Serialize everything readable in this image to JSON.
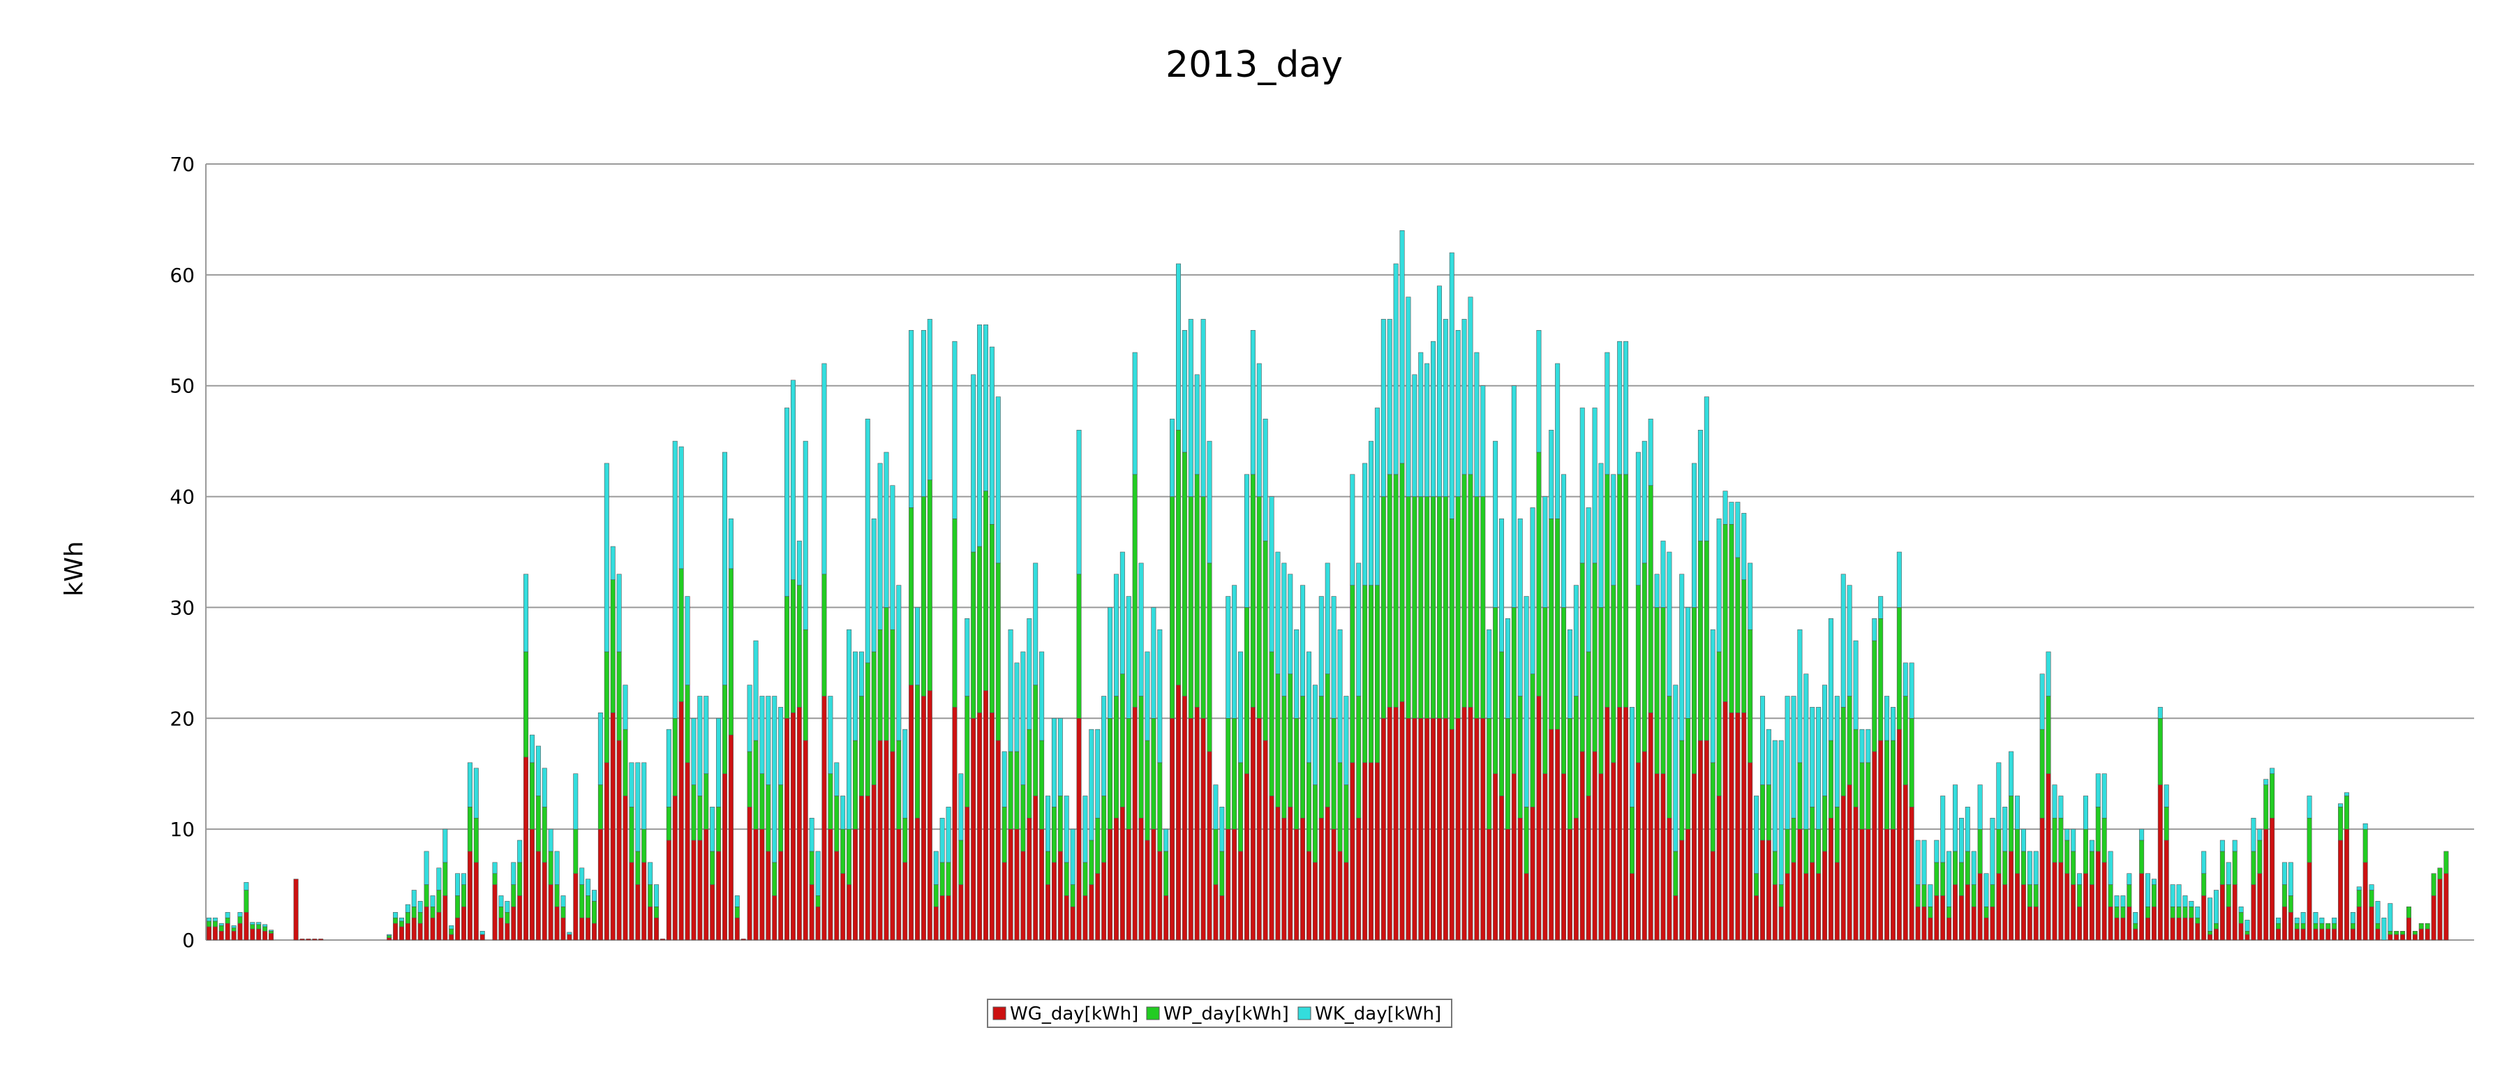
{
  "chart_data": {
    "type": "bar",
    "stacked": true,
    "title": "2013_day",
    "xlabel": "",
    "ylabel": "kWh",
    "ylim": [
      0,
      70
    ],
    "yticks": [
      0,
      10,
      20,
      30,
      40,
      50,
      60,
      70
    ],
    "grid": true,
    "legend_position": "bottom-center",
    "num_days": 365,
    "series": [
      {
        "name": "WG_day[kWh]",
        "color": "#cc1111",
        "values": [
          1.2,
          1.2,
          0.8,
          1.5,
          0.8,
          1.5,
          2.5,
          1,
          1,
          0.8,
          0.6,
          0,
          0,
          0,
          5.5,
          0.1,
          0.1,
          0.1,
          0.1,
          0,
          0,
          0,
          0,
          0,
          0,
          0,
          0,
          0,
          0,
          0.2,
          1.5,
          1.2,
          1.5,
          2,
          1.5,
          3,
          2,
          2.5,
          4,
          0.5,
          2,
          3,
          8,
          7,
          0.5,
          0,
          5,
          2,
          1.5,
          3,
          4,
          16.5,
          10,
          8,
          7,
          5,
          3,
          2,
          0.5,
          6,
          2,
          2,
          1.5,
          10,
          16,
          20.5,
          18,
          13,
          7,
          5,
          7,
          3,
          2,
          0.1,
          9,
          13,
          21.5,
          16,
          9,
          9,
          10,
          5,
          8,
          15,
          18.5,
          2,
          0.1,
          12,
          10,
          10,
          8,
          4,
          8,
          20,
          20.5,
          21,
          18,
          5,
          3,
          22,
          10,
          8,
          6,
          5,
          10,
          13,
          13,
          14,
          18,
          18,
          17,
          10,
          7,
          23,
          11,
          22,
          22.5,
          3,
          4,
          4,
          21,
          5,
          12,
          20,
          20.5,
          22.5,
          20.5,
          18,
          7,
          10,
          10,
          8,
          11,
          13,
          10,
          5,
          7,
          8,
          4,
          3,
          20,
          4,
          5,
          6,
          7,
          10,
          11,
          12,
          10,
          21,
          11,
          9,
          10,
          8,
          4,
          20,
          23,
          22,
          20,
          21,
          20,
          17,
          5,
          4,
          10,
          10,
          8,
          15,
          21,
          20,
          18,
          13,
          12,
          11,
          12,
          10,
          11,
          8,
          7,
          11,
          12,
          10,
          8,
          7,
          16,
          11,
          16,
          16,
          16,
          20,
          21,
          21,
          21.5,
          20,
          20,
          20,
          20,
          20,
          20,
          20,
          19,
          20,
          21,
          21,
          20,
          20,
          10,
          15,
          13,
          10,
          15,
          11,
          6,
          12,
          22,
          15,
          19,
          19,
          15,
          10,
          11,
          17,
          13,
          17,
          15,
          21,
          16,
          21,
          21,
          6,
          16,
          17,
          20.5,
          15,
          15,
          11,
          4,
          9,
          10,
          15,
          18,
          18,
          8,
          13,
          21.5,
          20.5,
          20.5,
          20.5,
          16,
          4,
          9,
          9,
          5,
          3,
          6,
          7,
          10,
          6,
          7,
          6,
          8,
          11,
          7,
          13,
          14,
          12,
          10,
          10,
          17,
          18,
          10,
          10,
          19,
          14,
          12,
          3,
          3,
          2,
          4,
          4,
          2,
          5,
          4,
          5,
          3,
          6,
          2,
          3,
          6,
          5,
          8,
          6,
          5,
          3,
          3,
          11,
          15,
          7,
          7,
          6,
          5,
          3,
          6,
          5,
          8,
          7,
          3,
          2,
          2,
          3,
          1,
          6,
          2,
          3,
          14,
          9,
          2,
          2,
          2,
          2,
          1.5,
          4,
          0.5,
          1,
          5,
          3,
          5,
          1.5,
          0.5,
          5,
          6,
          10,
          11,
          1,
          3,
          2.5,
          1,
          1,
          7,
          1,
          1,
          1,
          1,
          9,
          10,
          1,
          3,
          7,
          3,
          1,
          0,
          0.5,
          0.5,
          0.5,
          2,
          0.5,
          1,
          1,
          4,
          5.5,
          6
        ]
      },
      {
        "name": "WP_day[kWh]",
        "color": "#22cc22",
        "values": [
          0.5,
          0.5,
          0.5,
          0.5,
          0.3,
          0.6,
          2,
          0.4,
          0.4,
          0.4,
          0.2,
          0,
          0,
          0,
          0,
          0,
          0,
          0,
          0,
          0,
          0,
          0,
          0,
          0,
          0,
          0,
          0,
          0,
          0,
          0.2,
          0.5,
          0.5,
          1,
          1,
          1,
          2,
          1,
          2,
          3,
          0.5,
          2,
          2,
          4,
          4,
          0,
          0,
          1,
          1,
          1,
          2,
          3,
          9.5,
          6,
          5,
          5,
          3,
          2,
          1,
          0,
          4,
          3,
          2,
          2,
          4,
          10,
          12,
          8,
          6,
          5,
          3,
          3,
          2,
          1,
          0,
          3,
          7,
          12,
          7,
          5,
          4,
          5,
          3,
          4,
          8,
          15,
          1,
          0,
          5,
          8,
          5,
          6,
          3,
          6,
          11,
          12,
          11,
          10,
          3,
          1,
          11,
          5,
          5,
          4,
          5,
          8,
          9,
          12,
          12,
          10,
          12,
          11,
          8,
          4,
          16,
          12,
          18,
          19,
          2,
          3,
          3,
          17,
          4,
          10,
          15,
          15,
          18,
          17,
          16,
          5,
          7,
          7,
          6,
          8,
          10,
          8,
          3,
          5,
          5,
          3,
          2,
          13,
          3,
          4,
          5,
          6,
          10,
          11,
          12,
          10,
          21,
          11,
          9,
          10,
          8,
          4,
          20,
          23,
          22,
          20,
          21,
          20,
          17,
          5,
          4,
          10,
          10,
          8,
          15,
          21,
          20,
          18,
          13,
          12,
          11,
          12,
          10,
          11,
          8,
          7,
          11,
          12,
          10,
          8,
          7,
          16,
          11,
          16,
          16,
          16,
          20,
          21,
          21,
          21.5,
          20,
          20,
          20,
          20,
          20,
          20,
          20,
          19,
          20,
          21,
          21,
          20,
          20,
          10,
          15,
          13,
          10,
          15,
          11,
          6,
          12,
          22,
          15,
          19,
          19,
          15,
          10,
          11,
          17,
          13,
          17,
          15,
          21,
          16,
          21,
          21,
          6,
          16,
          17,
          20.5,
          15,
          15,
          11,
          4,
          9,
          10,
          15,
          18,
          18,
          8,
          13,
          16,
          17,
          14,
          12,
          12,
          2,
          5,
          5,
          3,
          2,
          4,
          4,
          6,
          4,
          5,
          4,
          5,
          7,
          5,
          8,
          8,
          7,
          6,
          6,
          10,
          11,
          8,
          8,
          11,
          8,
          8,
          2,
          2,
          1,
          3,
          3,
          1,
          3,
          3,
          3,
          2,
          4,
          1,
          2,
          4,
          3,
          5,
          4,
          3,
          2,
          2,
          8,
          7,
          4,
          4,
          3,
          3,
          2,
          4,
          3,
          4,
          4,
          2,
          1,
          1,
          2,
          0.5,
          3,
          1,
          2,
          6,
          3,
          1,
          1,
          1,
          1,
          0.5,
          2,
          0.3,
          0.5,
          3,
          2,
          3,
          1,
          0.3,
          3,
          3,
          4,
          4,
          0.5,
          2,
          1.5,
          0.5,
          0.5,
          4,
          0.5,
          0.5,
          0.5,
          0.5,
          3,
          3,
          0.5,
          1.5,
          3,
          1.5,
          0.5,
          0,
          0.3,
          0.3,
          0.3,
          1,
          0.3,
          0.5,
          0.5,
          2,
          1,
          2
        ]
      },
      {
        "name": "WK_day[kWh]",
        "color": "#33dddd",
        "values": [
          0.3,
          0.3,
          0.2,
          0.5,
          0.2,
          0.4,
          0.7,
          0.2,
          0.2,
          0.2,
          0.1,
          0,
          0,
          0,
          0,
          0,
          0,
          0,
          0,
          0,
          0,
          0,
          0,
          0,
          0,
          0,
          0,
          0,
          0,
          0.1,
          0.5,
          0.3,
          0.7,
          1.5,
          1,
          3,
          1,
          2,
          3,
          0.3,
          2,
          1,
          4,
          4.5,
          0.3,
          0,
          1,
          1,
          1,
          2,
          2,
          7,
          2.5,
          4.5,
          3.5,
          2,
          3,
          1,
          0.2,
          5,
          1.5,
          1.5,
          1,
          6.5,
          17,
          3,
          7,
          4,
          4,
          8,
          6,
          2,
          2,
          0,
          7,
          25,
          11,
          8,
          6,
          9,
          7,
          4,
          8,
          21,
          4.5,
          1,
          0,
          6,
          9,
          7,
          8,
          15,
          7,
          17,
          18,
          4,
          17,
          3,
          4,
          19,
          7,
          3,
          3,
          18,
          8,
          4,
          22,
          12,
          15,
          14,
          13,
          14,
          8,
          16,
          7,
          15,
          14.5,
          3,
          4,
          5,
          16,
          6,
          7,
          16,
          20,
          15,
          16,
          15,
          5,
          11,
          8,
          12,
          10,
          11,
          8,
          5,
          8,
          7,
          6,
          5,
          13,
          6,
          10,
          8,
          9,
          10,
          11,
          11,
          11,
          11,
          12,
          8,
          10,
          12,
          2,
          7,
          15,
          11,
          16,
          9,
          16,
          11,
          4,
          4,
          11,
          12,
          10,
          12,
          13,
          12,
          11,
          14,
          11,
          12,
          9,
          8,
          10,
          10,
          9,
          9,
          10,
          11,
          12,
          8,
          10,
          12,
          11,
          13,
          16,
          16,
          14,
          19,
          21,
          18,
          11,
          13,
          12,
          14,
          19,
          16,
          24,
          15,
          14,
          16,
          13,
          10,
          8,
          15,
          12,
          9,
          20,
          16,
          19,
          15,
          11,
          10,
          8,
          14,
          12,
          8,
          10,
          14,
          13,
          14,
          13,
          11,
          10,
          12,
          12,
          9,
          12,
          11,
          6,
          3,
          6,
          13,
          15,
          15,
          10,
          13,
          10,
          13,
          12,
          12,
          3,
          2,
          5,
          6,
          6,
          7,
          8,
          5,
          10,
          13,
          12,
          11,
          12,
          14,
          9,
          11,
          10,
          11,
          10,
          12,
          10,
          8,
          3,
          3,
          2,
          2,
          4,
          3,
          5,
          3,
          5,
          4,
          4,
          2,
          2,
          6,
          5,
          6,
          4,
          4,
          3,
          4,
          3,
          6,
          6,
          4,
          4,
          3,
          2,
          3,
          3,
          5,
          4,
          3,
          2,
          1,
          2,
          1,
          3,
          1,
          3,
          4,
          3,
          1,
          1,
          1,
          1,
          1,
          3,
          0.5,
          1,
          2,
          2,
          2,
          1,
          0.5,
          1,
          2,
          3,
          3,
          1,
          2,
          1,
          0.5,
          1,
          3,
          1,
          0.5,
          0.5,
          0.5,
          2,
          3,
          0.5,
          1,
          2,
          1,
          0.5,
          0,
          0.5,
          0.3,
          0.3,
          1,
          0.3,
          0.5,
          0.5,
          2,
          2,
          2.5
        ]
      }
    ]
  }
}
